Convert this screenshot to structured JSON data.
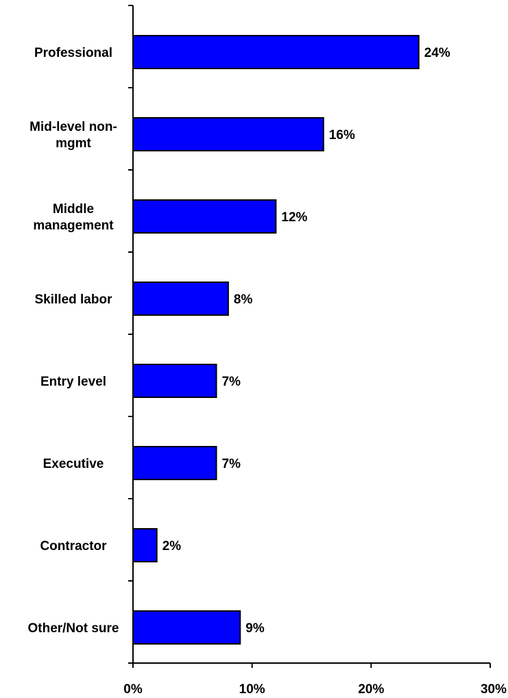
{
  "chart_data": {
    "type": "bar",
    "orientation": "horizontal",
    "categories": [
      [
        "Professional"
      ],
      [
        "Mid-level non-",
        "mgmt"
      ],
      [
        "Middle",
        "management"
      ],
      [
        "Skilled labor"
      ],
      [
        "Entry level"
      ],
      [
        "Executive"
      ],
      [
        "Contractor"
      ],
      [
        "Other/Not sure"
      ]
    ],
    "values": [
      24,
      16,
      12,
      8,
      7,
      7,
      2,
      9
    ],
    "value_labels": [
      "24%",
      "16%",
      "12%",
      "8%",
      "7%",
      "7%",
      "2%",
      "9%"
    ],
    "xlim": [
      0,
      30
    ],
    "x_ticks": [
      0,
      10,
      20,
      30
    ],
    "x_tick_labels": [
      "0%",
      "10%",
      "20%",
      "30%"
    ],
    "title": "",
    "xlabel": "",
    "ylabel": "",
    "grid": false,
    "legend": "none",
    "colors": {
      "bar_fill": "#0000FF",
      "bar_stroke": "#000000",
      "axis": "#000000"
    }
  }
}
